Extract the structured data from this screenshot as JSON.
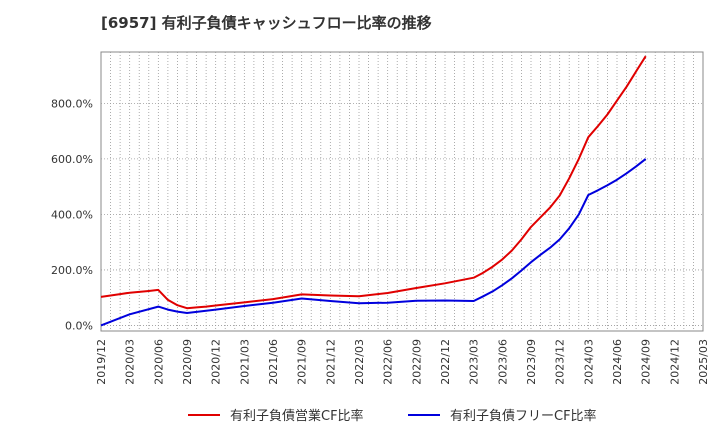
{
  "title": "[6957]  有利子負債キャッシュフロー比率の推移",
  "chart_data": {
    "type": "line",
    "x": [
      "2019/12",
      "2020/03",
      "2020/06",
      "2020/09",
      "2020/12",
      "2021/03",
      "2021/06",
      "2021/09",
      "2021/12",
      "2022/03",
      "2022/06",
      "2022/09",
      "2022/12",
      "2023/03",
      "2023/06",
      "2023/09",
      "2023/12",
      "2024/03",
      "2024/06",
      "2024/09",
      "2024/12",
      "2025/03"
    ],
    "ylim": [
      -20,
      985
    ],
    "yticks": [
      0,
      200,
      400,
      600,
      800
    ],
    "ytick_labels": [
      "0.0%",
      "200.0%",
      "400.0%",
      "600.0%",
      "800.0%"
    ],
    "grid": true,
    "legend_position": "bottom",
    "series": [
      {
        "name": "有利子負債営業CF比率",
        "color": "#e00000",
        "points": [
          [
            "2019/12",
            103
          ],
          [
            "2020/01",
            108
          ],
          [
            "2020/02",
            113
          ],
          [
            "2020/03",
            118
          ],
          [
            "2020/04",
            121
          ],
          [
            "2020/05",
            124
          ],
          [
            "2020/06",
            128
          ],
          [
            "2020/07",
            92
          ],
          [
            "2020/08",
            73
          ],
          [
            "2020/09",
            62
          ],
          [
            "2020/10",
            65
          ],
          [
            "2020/11",
            68
          ],
          [
            "2020/12",
            72
          ],
          [
            "2021/03",
            83
          ],
          [
            "2021/06",
            95
          ],
          [
            "2021/09",
            112
          ],
          [
            "2021/12",
            108
          ],
          [
            "2022/03",
            105
          ],
          [
            "2022/06",
            117
          ],
          [
            "2022/09",
            135
          ],
          [
            "2022/12",
            152
          ],
          [
            "2023/03",
            172
          ],
          [
            "2023/04",
            190
          ],
          [
            "2023/05",
            212
          ],
          [
            "2023/06",
            238
          ],
          [
            "2023/07",
            270
          ],
          [
            "2023/08",
            310
          ],
          [
            "2023/09",
            355
          ],
          [
            "2023/10",
            390
          ],
          [
            "2023/11",
            425
          ],
          [
            "2023/12",
            468
          ],
          [
            "2024/01",
            530
          ],
          [
            "2024/02",
            600
          ],
          [
            "2024/03",
            678
          ],
          [
            "2024/04",
            718
          ],
          [
            "2024/05",
            760
          ],
          [
            "2024/06",
            810
          ],
          [
            "2024/07",
            860
          ],
          [
            "2024/08",
            915
          ],
          [
            "2024/09",
            970
          ]
        ]
      },
      {
        "name": "有利子負債フリーCF比率",
        "color": "#0000dd",
        "points": [
          [
            "2019/12",
            0
          ],
          [
            "2020/03",
            40
          ],
          [
            "2020/06",
            68
          ],
          [
            "2020/07",
            57
          ],
          [
            "2020/08",
            50
          ],
          [
            "2020/09",
            45
          ],
          [
            "2020/12",
            57
          ],
          [
            "2021/03",
            70
          ],
          [
            "2021/06",
            82
          ],
          [
            "2021/09",
            97
          ],
          [
            "2021/12",
            88
          ],
          [
            "2022/03",
            80
          ],
          [
            "2022/06",
            82
          ],
          [
            "2022/09",
            89
          ],
          [
            "2022/12",
            90
          ],
          [
            "2023/03",
            88
          ],
          [
            "2023/04",
            105
          ],
          [
            "2023/05",
            123
          ],
          [
            "2023/06",
            145
          ],
          [
            "2023/07",
            170
          ],
          [
            "2023/08",
            198
          ],
          [
            "2023/09",
            228
          ],
          [
            "2023/10",
            255
          ],
          [
            "2023/11",
            280
          ],
          [
            "2023/12",
            310
          ],
          [
            "2024/01",
            350
          ],
          [
            "2024/02",
            400
          ],
          [
            "2024/03",
            470
          ],
          [
            "2024/04",
            487
          ],
          [
            "2024/05",
            505
          ],
          [
            "2024/06",
            525
          ],
          [
            "2024/07",
            548
          ],
          [
            "2024/08",
            573
          ],
          [
            "2024/09",
            600
          ]
        ]
      }
    ]
  }
}
